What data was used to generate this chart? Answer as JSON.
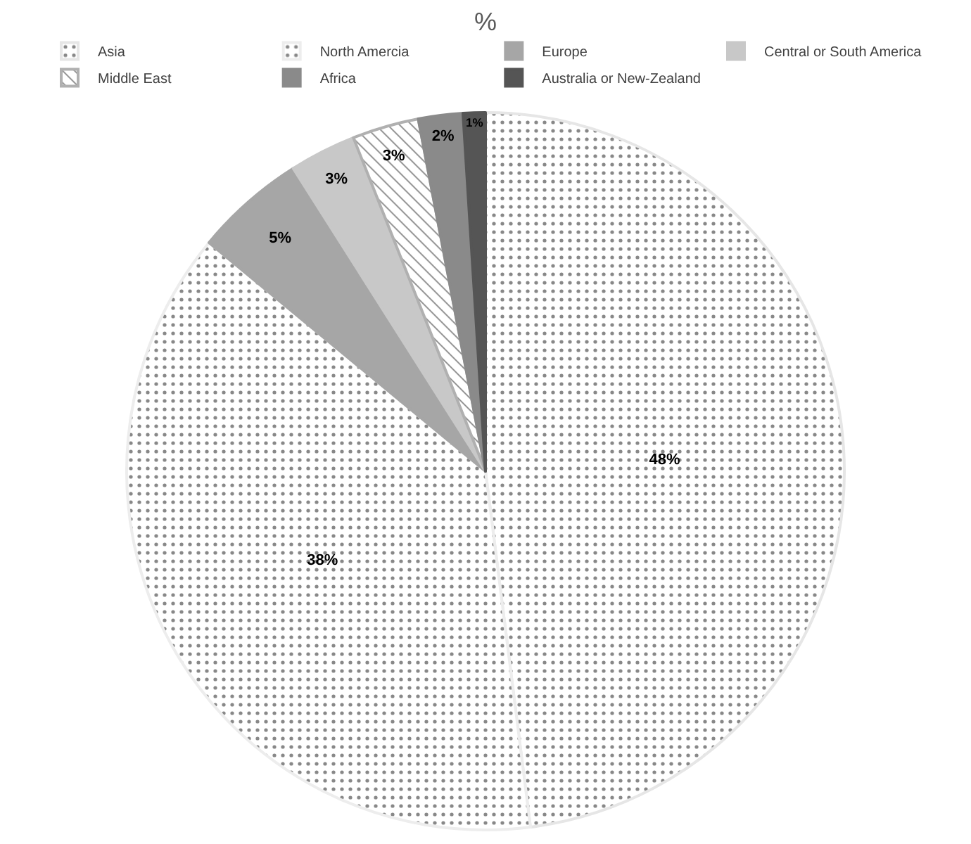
{
  "chart_data": {
    "type": "pie",
    "title": "%",
    "categories": [
      "Asia",
      "North Amercia",
      "Europe",
      "Central or South America",
      "Middle East",
      "Africa",
      "Australia or New-Zealand"
    ],
    "values": [
      48,
      38,
      5,
      3,
      3,
      2,
      1
    ],
    "colors": [
      "#e6e6e6",
      "#ededed",
      "#a6a6a6",
      "#c8c8c8",
      "#b0b0b0",
      "#8a8a8a",
      "#555555"
    ],
    "value_labels": [
      "48%",
      "38%",
      "5%",
      "3%",
      "3%",
      "2%",
      "1%"
    ],
    "legend": "top"
  }
}
